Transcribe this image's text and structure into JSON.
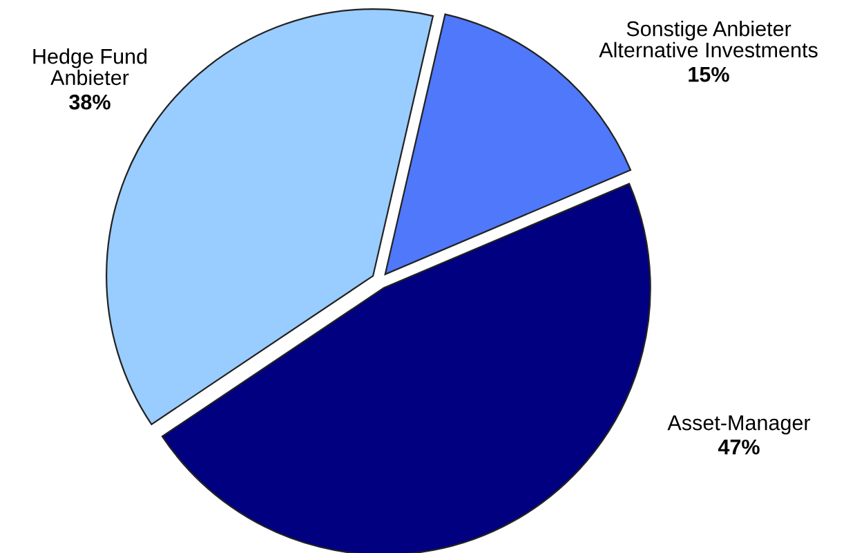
{
  "chart_data": {
    "type": "pie",
    "categories": [
      "Hedge Fund\nAnbieter",
      "Sonstige Anbieter\nAlternative Investments",
      "Asset-Manager"
    ],
    "values": [
      38,
      15,
      47
    ],
    "colors": [
      "#99ccff",
      "#4f78fa",
      "#000080"
    ],
    "value_labels": [
      "38%",
      "15%",
      "47%"
    ]
  }
}
